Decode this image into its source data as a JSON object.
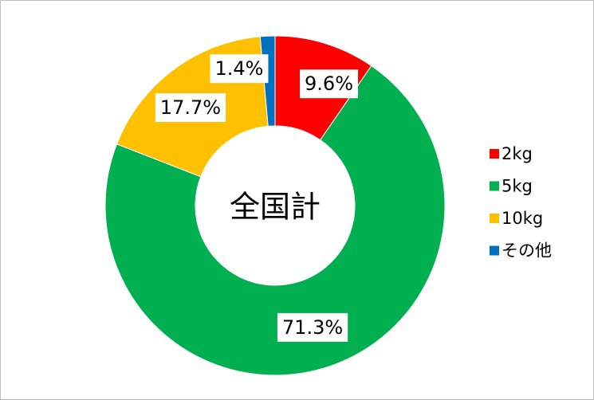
{
  "chart_data": {
    "type": "donut",
    "center_label": "全国計",
    "categories": [
      "2kg",
      "5kg",
      "10kg",
      "その他"
    ],
    "values": [
      9.6,
      71.3,
      17.7,
      1.4
    ],
    "value_labels": [
      "9.6%",
      "71.3%",
      "17.7%",
      "1.4%"
    ],
    "colors": [
      "#ff0000",
      "#00b050",
      "#ffc000",
      "#0070c0"
    ],
    "legend": "right"
  }
}
